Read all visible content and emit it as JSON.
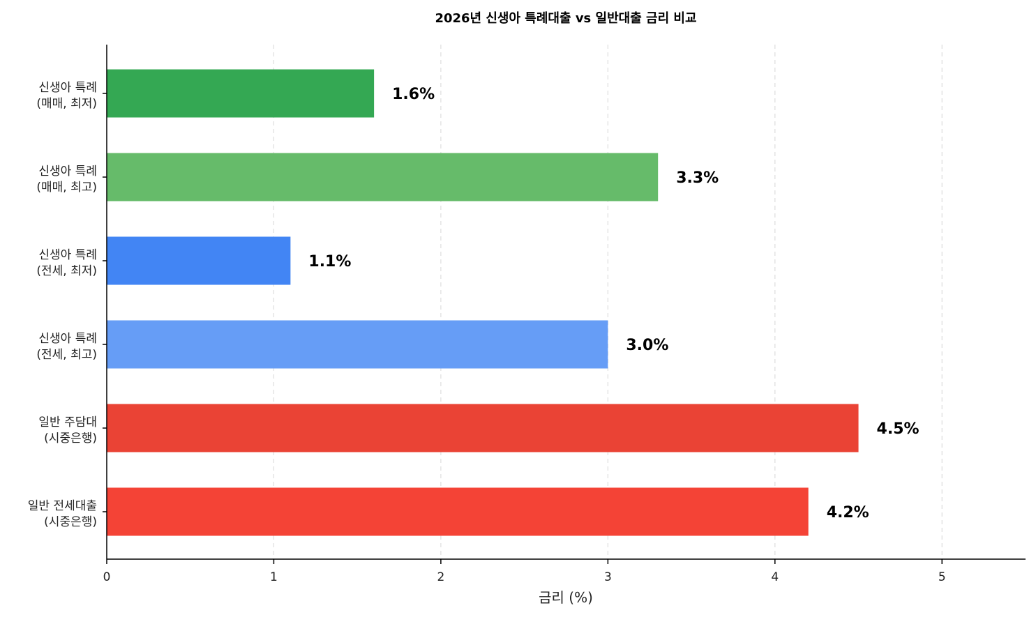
{
  "chart_data": {
    "type": "bar",
    "orientation": "horizontal",
    "title": "2026년 신생아 특례대출 vs 일반대출 금리 비교",
    "xlabel": "금리 (%)",
    "ylabel": "",
    "xlim": [
      0,
      5.5
    ],
    "xticks": [
      0,
      1,
      2,
      3,
      4,
      5
    ],
    "grid": "x-dashed",
    "categories": [
      [
        "신생아 특례",
        "(매매, 최저)"
      ],
      [
        "신생아 특례",
        "(매매, 최고)"
      ],
      [
        "신생아 특례",
        "(전세, 최저)"
      ],
      [
        "신생아 특례",
        "(전세, 최고)"
      ],
      [
        "일반 주담대",
        "(시중은행)"
      ],
      [
        "일반 전세대출",
        "(시중은행)"
      ]
    ],
    "values": [
      1.6,
      3.3,
      1.1,
      3.0,
      4.5,
      4.2
    ],
    "value_labels": [
      "1.6%",
      "3.3%",
      "1.1%",
      "3.0%",
      "4.5%",
      "4.2%"
    ],
    "colors": [
      "#34a853",
      "#66bb6a",
      "#4285f4",
      "#669df6",
      "#ea4335",
      "#f44336"
    ]
  }
}
